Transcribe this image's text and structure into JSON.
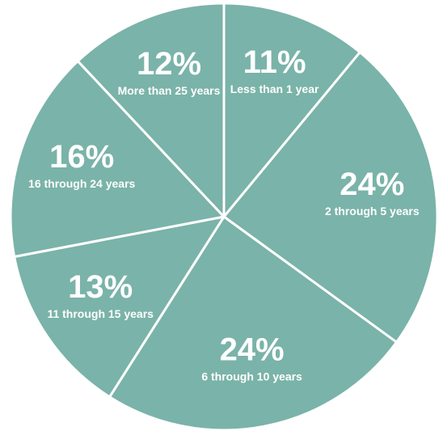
{
  "chart_data": {
    "type": "pie",
    "slice_color": "#7AB3A9",
    "divider_color": "#FFFFFF",
    "slices": [
      {
        "label": "Less than 1 year",
        "value": 11,
        "value_label": "11%"
      },
      {
        "label": "2 through 5 years",
        "value": 24,
        "value_label": "24%"
      },
      {
        "label": "6 through 10 years",
        "value": 24,
        "value_label": "24%"
      },
      {
        "label": "11 through 15 years",
        "value": 13,
        "value_label": "13%"
      },
      {
        "label": "16 through 24 years",
        "value": 16,
        "value_label": "16%"
      },
      {
        "label": "More than 25 years",
        "value": 12,
        "value_label": "12%"
      }
    ]
  }
}
